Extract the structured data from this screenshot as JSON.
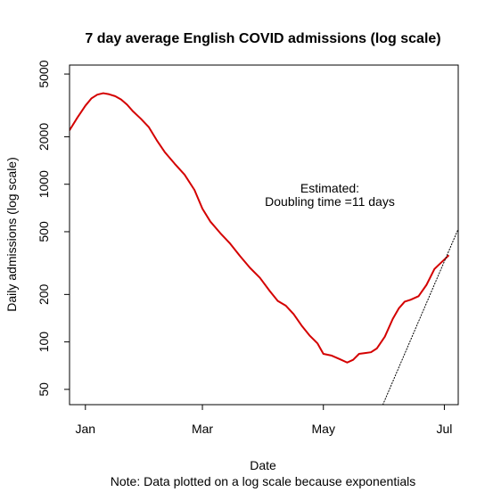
{
  "chart_data": {
    "type": "line",
    "title": "7 day average English COVID admissions (log scale)",
    "xlabel": "Date",
    "ylabel": "Daily admissions (log scale)",
    "note": "Note: Data plotted on a log scale because exponentials",
    "annotation": {
      "line1": "Estimated:",
      "line2": "Doubling time =11 days"
    },
    "y_scale": "log",
    "ylim": [
      40,
      5700
    ],
    "xlim": [
      "2021-12-24",
      "2022-07-08"
    ],
    "x_ticks": [
      {
        "date": "2022-01-01",
        "label": "Jan"
      },
      {
        "date": "2022-03-01",
        "label": "Mar"
      },
      {
        "date": "2022-05-01",
        "label": "May"
      },
      {
        "date": "2022-07-01",
        "label": "Jul"
      }
    ],
    "y_ticks": [
      {
        "value": 50,
        "label": "50"
      },
      {
        "value": 100,
        "label": "100"
      },
      {
        "value": 200,
        "label": "200"
      },
      {
        "value": 500,
        "label": "500"
      },
      {
        "value": 1000,
        "label": "1000"
      },
      {
        "value": 2000,
        "label": "2000"
      },
      {
        "value": 5000,
        "label": "5000"
      }
    ],
    "grid": false,
    "colors": {
      "series": "#d40000",
      "fit": "#000000"
    },
    "series": [
      {
        "style": "solid",
        "color": "#d40000",
        "points": [
          [
            "2021-12-24",
            2200
          ],
          [
            "2021-12-28",
            2650
          ],
          [
            "2022-01-01",
            3150
          ],
          [
            "2022-01-04",
            3500
          ],
          [
            "2022-01-07",
            3700
          ],
          [
            "2022-01-10",
            3780
          ],
          [
            "2022-01-13",
            3720
          ],
          [
            "2022-01-16",
            3620
          ],
          [
            "2022-01-19",
            3450
          ],
          [
            "2022-01-22",
            3200
          ],
          [
            "2022-01-25",
            2900
          ],
          [
            "2022-01-29",
            2600
          ],
          [
            "2022-02-02",
            2300
          ],
          [
            "2022-02-06",
            1900
          ],
          [
            "2022-02-10",
            1600
          ],
          [
            "2022-02-15",
            1350
          ],
          [
            "2022-02-20",
            1150
          ],
          [
            "2022-02-25",
            920
          ],
          [
            "2022-03-01",
            700
          ],
          [
            "2022-03-05",
            580
          ],
          [
            "2022-03-10",
            490
          ],
          [
            "2022-03-15",
            420
          ],
          [
            "2022-03-20",
            350
          ],
          [
            "2022-03-25",
            295
          ],
          [
            "2022-03-30",
            255
          ],
          [
            "2022-04-04",
            210
          ],
          [
            "2022-04-08",
            182
          ],
          [
            "2022-04-12",
            170
          ],
          [
            "2022-04-16",
            150
          ],
          [
            "2022-04-20",
            127
          ],
          [
            "2022-04-24",
            110
          ],
          [
            "2022-04-28",
            98
          ],
          [
            "2022-05-01",
            84
          ],
          [
            "2022-05-05",
            82
          ],
          [
            "2022-05-09",
            78
          ],
          [
            "2022-05-13",
            74
          ],
          [
            "2022-05-16",
            77
          ],
          [
            "2022-05-19",
            84
          ],
          [
            "2022-05-22",
            85
          ],
          [
            "2022-05-25",
            86
          ],
          [
            "2022-05-28",
            91
          ],
          [
            "2022-06-01",
            108
          ],
          [
            "2022-06-05",
            140
          ],
          [
            "2022-06-08",
            163
          ],
          [
            "2022-06-11",
            180
          ],
          [
            "2022-06-14",
            185
          ],
          [
            "2022-06-18",
            195
          ],
          [
            "2022-06-22",
            230
          ],
          [
            "2022-06-26",
            290
          ],
          [
            "2022-07-03",
            352
          ]
        ]
      },
      {
        "style": "dotted",
        "color": "#000000",
        "points": [
          [
            "2022-05-31",
            40
          ],
          [
            "2022-07-08",
            520
          ]
        ]
      }
    ]
  }
}
